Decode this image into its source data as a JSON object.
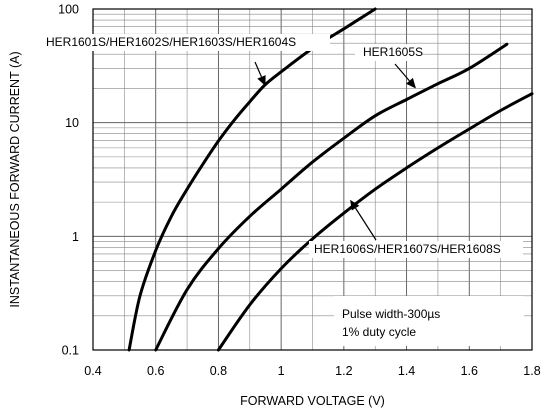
{
  "chart_data": {
    "type": "line",
    "title": "",
    "xlabel": "FORWARD VOLTAGE (V)",
    "ylabel": "INSTANTANEOUS FORWARD CURRENT (A)",
    "xlim": [
      0.4,
      1.8
    ],
    "ylim": [
      0.1,
      100
    ],
    "yscale": "log",
    "grid": true,
    "x_ticks": [
      "0.4",
      "0.6",
      "0.8",
      "1",
      "1.2",
      "1.4",
      "1.6",
      "1.8"
    ],
    "y_ticks": [
      "0.1",
      "1",
      "10",
      "100"
    ],
    "series": [
      {
        "name": "HER1601S/HER1602S/HER1603S/HER1604S",
        "x": [
          0.515,
          0.55,
          0.6,
          0.65,
          0.7,
          0.75,
          0.8,
          0.85,
          0.9,
          0.95,
          1.0,
          1.1,
          1.2,
          1.3
        ],
        "y": [
          0.1,
          0.3,
          0.75,
          1.5,
          2.6,
          4.3,
          6.9,
          10.5,
          15.3,
          21.7,
          28.0,
          45.0,
          67.0,
          100.0
        ]
      },
      {
        "name": "HER1605S",
        "x": [
          0.6,
          0.7,
          0.8,
          0.9,
          1.0,
          1.1,
          1.2,
          1.3,
          1.4,
          1.5,
          1.6,
          1.72
        ],
        "y": [
          0.1,
          0.34,
          0.78,
          1.5,
          2.6,
          4.5,
          7.3,
          11.5,
          16.0,
          22.0,
          30.0,
          49.0
        ]
      },
      {
        "name": "HER1606S/HER1607S/HER1608S",
        "x": [
          0.8,
          0.9,
          1.0,
          1.1,
          1.2,
          1.3,
          1.4,
          1.5,
          1.6,
          1.7,
          1.8
        ],
        "y": [
          0.1,
          0.25,
          0.52,
          0.95,
          1.6,
          2.6,
          4.0,
          6.0,
          8.8,
          12.8,
          18.0
        ]
      }
    ],
    "annotations": [
      {
        "text": "HER1601S/HER1602S/HER1603S/HER1604S",
        "x": 0.95,
        "y": 21
      },
      {
        "text": "HER1605S",
        "x": 1.43,
        "y": 20
      },
      {
        "text": "HER1606S/HER1607S/HER1608S",
        "x": 1.22,
        "y": 2.1
      }
    ],
    "note_lines": [
      "Pulse width-300µs",
      "1% duty cycle"
    ]
  }
}
